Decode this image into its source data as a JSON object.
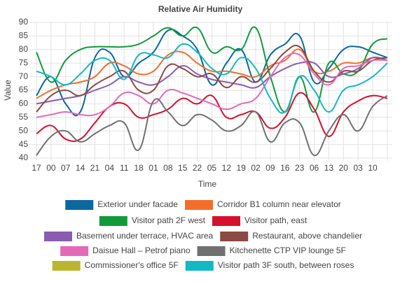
{
  "chart_data": {
    "type": "line",
    "title": "Relative Air Humidity",
    "x_label": "Time",
    "y_label": "Value",
    "categories": [
      "17",
      "00",
      "07",
      "14",
      "21",
      "04",
      "11",
      "18",
      "01",
      "08",
      "15",
      "22",
      "05",
      "12",
      "19",
      "02",
      "09",
      "16",
      "23",
      "06",
      "13",
      "20",
      "03",
      "10",
      null
    ],
    "ylim": [
      40,
      90
    ],
    "yticks": [
      40,
      45,
      50,
      55,
      60,
      65,
      70,
      75,
      80,
      85,
      90
    ],
    "grid": true,
    "smooth": true,
    "series": [
      {
        "name": "Exterior under facade",
        "color": "#0b67a0",
        "values": [
          63,
          70,
          60,
          57,
          77,
          79,
          70,
          75,
          79,
          87,
          85,
          80,
          67,
          75,
          80,
          68,
          78,
          82,
          85,
          68,
          73,
          80,
          81,
          79,
          77
        ]
      },
      {
        "name": "Corridor B1 column near elevator",
        "color": "#f46d2b",
        "values": [
          62,
          65,
          67,
          68,
          70,
          75,
          74,
          71,
          72,
          78,
          79,
          75,
          72,
          72,
          71,
          70,
          74,
          76,
          80,
          72,
          72,
          75,
          75,
          77,
          76
        ]
      },
      {
        "name": "Visitor path 2F west",
        "color": "#129a3a",
        "values": [
          79,
          68,
          76,
          80,
          81,
          81,
          81,
          82,
          85,
          88,
          85,
          88,
          79,
          81,
          80,
          88,
          70,
          57,
          70,
          57,
          75,
          71,
          72,
          82,
          84
        ]
      },
      {
        "name": "Visitor path, east",
        "color": "#d6102c",
        "values": [
          49,
          52,
          47,
          47,
          53,
          59,
          60,
          55,
          56,
          58,
          62,
          60,
          63,
          55,
          56,
          57,
          51,
          55,
          64,
          58,
          48,
          57,
          61,
          63,
          62
        ]
      },
      {
        "name": "Basement under terrace, HVAC area",
        "color": "#8a5cb0",
        "values": [
          60,
          61,
          62,
          63,
          65,
          67,
          70,
          68,
          67,
          70,
          74,
          71,
          69,
          68,
          67,
          66,
          70,
          73,
          75,
          75,
          70,
          71,
          73,
          77,
          76
        ]
      },
      {
        "name": "Restaurant, above chandelier",
        "color": "#8b4a43",
        "values": [
          57,
          63,
          65,
          63,
          67,
          70,
          72,
          65,
          65,
          74,
          73,
          70,
          71,
          66,
          70,
          68,
          73,
          79,
          81,
          72,
          68,
          72,
          72,
          76,
          77
        ]
      },
      {
        "name": "Daisue Hall – Petrof piano",
        "color": "#e668b9",
        "values": [
          55,
          56,
          57,
          56,
          56,
          59,
          64,
          63,
          60,
          65,
          64,
          62,
          60,
          58,
          60,
          62,
          70,
          77,
          78,
          71,
          67,
          73,
          74,
          76,
          76
        ]
      },
      {
        "name": "Kitchenette CTP VIP lounge 5F",
        "color": "#707070",
        "values": [
          41,
          48,
          50,
          46,
          49,
          52,
          53,
          43,
          61,
          57,
          52,
          56,
          54,
          50,
          52,
          57,
          46,
          53,
          53,
          41,
          50,
          56,
          50,
          59,
          63
        ]
      },
      {
        "name": "Commissioner's office 5F",
        "color": "#bcb52f",
        "values": [
          null,
          null,
          null,
          null,
          null,
          null,
          null,
          null,
          null,
          null,
          null,
          null,
          null,
          null,
          null,
          null,
          null,
          null,
          null,
          null,
          null,
          null,
          null,
          null,
          null
        ]
      },
      {
        "name": "Visitor path 3F south, between roses",
        "color": "#14b8c4",
        "values": [
          72,
          70,
          67,
          71,
          76,
          76,
          69,
          78,
          78,
          77,
          82,
          79,
          73,
          71,
          77,
          73,
          62,
          57,
          70,
          65,
          57,
          65,
          67,
          70,
          75
        ]
      }
    ]
  }
}
